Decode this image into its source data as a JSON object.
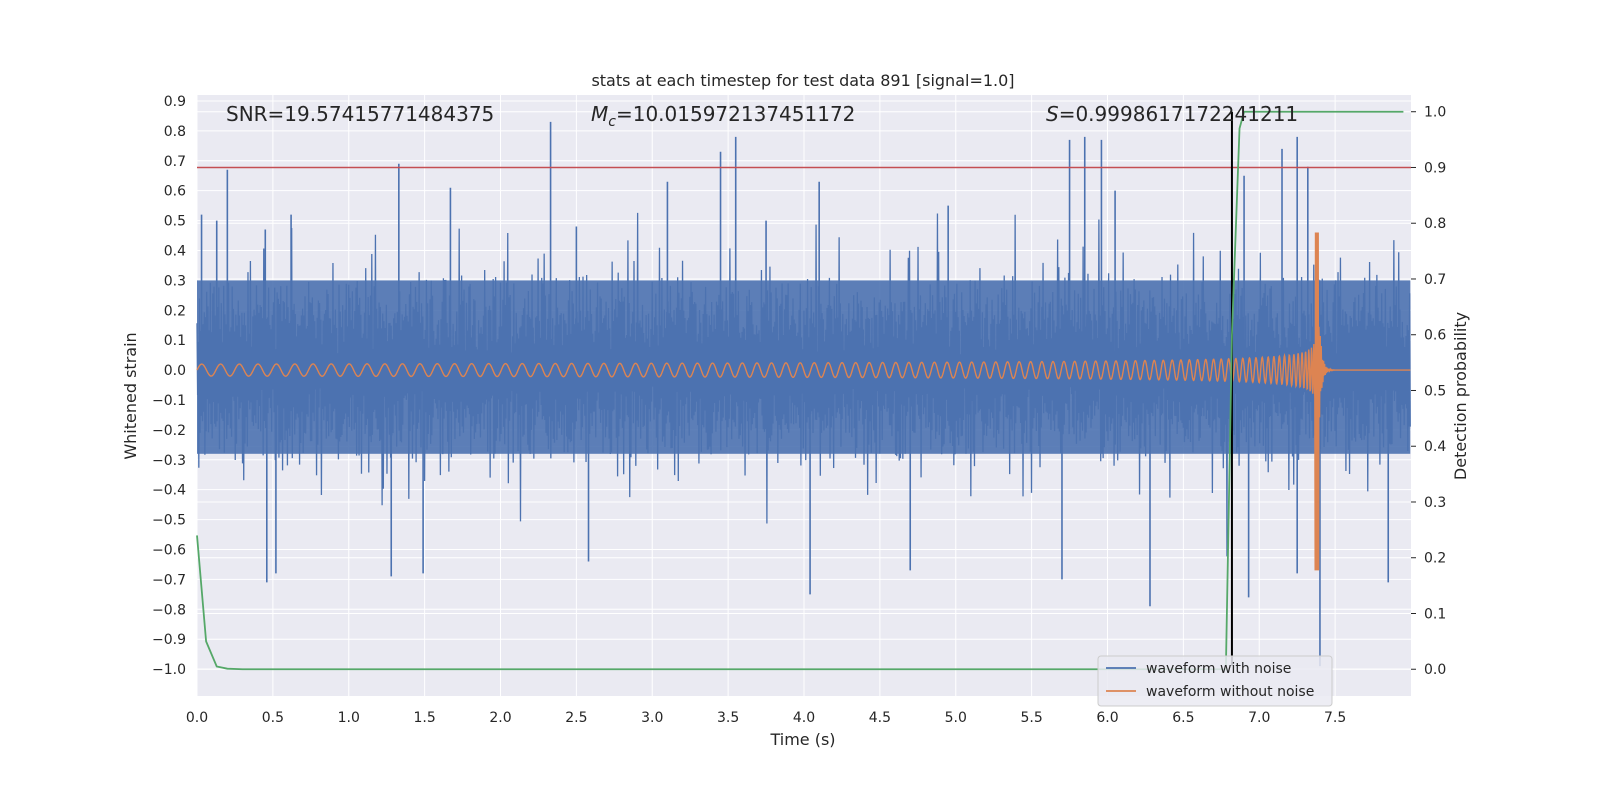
{
  "chart_data": {
    "type": "line",
    "title": "stats at each timestep for test data 891 [signal=1.0]",
    "xlabel": "Time (s)",
    "ylabel": "Whitened strain",
    "y2label": "Detection probability",
    "xlim": [
      0.0,
      8.0
    ],
    "ylim": [
      -1.09,
      0.92
    ],
    "y2lim": [
      -0.048,
      1.03
    ],
    "x_ticks": [
      "0.0",
      "0.5",
      "1.0",
      "1.5",
      "2.0",
      "2.5",
      "3.0",
      "3.5",
      "4.0",
      "4.5",
      "5.0",
      "5.5",
      "6.0",
      "6.5",
      "7.0",
      "7.5"
    ],
    "y_ticks": [
      "0.9",
      "0.8",
      "0.7",
      "0.6",
      "0.5",
      "0.4",
      "0.3",
      "0.2",
      "0.1",
      "0.0",
      "−0.1",
      "−0.2",
      "−0.3",
      "−0.4",
      "−0.5",
      "−0.6",
      "−0.7",
      "−0.8",
      "−0.9",
      "−1.0"
    ],
    "y2_ticks": [
      "1.0",
      "0.9",
      "0.8",
      "0.7",
      "0.6",
      "0.5",
      "0.4",
      "0.3",
      "0.2",
      "0.1",
      "0.0"
    ],
    "annotations": {
      "snr": "SNR=19.57415771484375",
      "mc_symbol": "M",
      "mc_sub": "c",
      "mc_value": "=10.015972137451172",
      "s_symbol": "S",
      "s_value": "=0.9998617172241211"
    },
    "threshold": {
      "value": 0.9,
      "axis": "right",
      "color": "#c44e52"
    },
    "merger_marker": {
      "x": 6.82,
      "color": "#000000"
    },
    "legend": {
      "placement": "lower-right",
      "entries": [
        {
          "label": "waveform with noise",
          "color": "#4c72b0"
        },
        {
          "label": "waveform without noise",
          "color": "#dd8452"
        }
      ]
    },
    "series": [
      {
        "name": "waveform with noise",
        "color": "#4c72b0",
        "axis": "left",
        "band_typical": [
          -0.28,
          0.3
        ],
        "peaks": [
          {
            "x": 0.03,
            "y": 0.52
          },
          {
            "x": 0.13,
            "y": 0.5
          },
          {
            "x": 0.2,
            "y": 0.67
          },
          {
            "x": 0.45,
            "y": 0.47
          },
          {
            "x": 0.62,
            "y": 0.52
          },
          {
            "x": 1.33,
            "y": 0.69
          },
          {
            "x": 1.67,
            "y": 0.61
          },
          {
            "x": 2.33,
            "y": 0.83
          },
          {
            "x": 2.5,
            "y": 0.48
          },
          {
            "x": 3.1,
            "y": 0.63
          },
          {
            "x": 3.45,
            "y": 0.73
          },
          {
            "x": 3.55,
            "y": 0.78
          },
          {
            "x": 3.75,
            "y": 0.5
          },
          {
            "x": 4.1,
            "y": 0.63
          },
          {
            "x": 4.95,
            "y": 0.55
          },
          {
            "x": 5.75,
            "y": 0.77
          },
          {
            "x": 5.85,
            "y": 0.78
          },
          {
            "x": 5.96,
            "y": 0.77
          },
          {
            "x": 6.05,
            "y": 0.6
          },
          {
            "x": 6.9,
            "y": 0.65
          },
          {
            "x": 7.15,
            "y": 0.74
          },
          {
            "x": 7.25,
            "y": 0.78
          },
          {
            "x": 7.32,
            "y": 0.68
          }
        ],
        "troughs": [
          {
            "x": 0.46,
            "y": -0.71
          },
          {
            "x": 0.52,
            "y": -0.68
          },
          {
            "x": 1.28,
            "y": -0.69
          },
          {
            "x": 1.49,
            "y": -0.68
          },
          {
            "x": 2.58,
            "y": -0.64
          },
          {
            "x": 4.04,
            "y": -0.75
          },
          {
            "x": 4.7,
            "y": -0.67
          },
          {
            "x": 5.7,
            "y": -0.7
          },
          {
            "x": 6.28,
            "y": -0.79
          },
          {
            "x": 6.93,
            "y": -0.76
          },
          {
            "x": 7.25,
            "y": -0.68
          },
          {
            "x": 7.4,
            "y": -0.99
          },
          {
            "x": 7.85,
            "y": -0.71
          }
        ]
      },
      {
        "name": "waveform without noise",
        "color": "#dd8452",
        "axis": "left",
        "description_values": {
          "initial_amplitude": 0.02,
          "peak_x": 7.38,
          "peak_max": 0.46,
          "peak_min": -0.67,
          "post_merger": 0.0
        }
      },
      {
        "name": "detection probability",
        "color": "#55a868",
        "axis": "right",
        "x": [
          0.0,
          0.06,
          0.13,
          0.2,
          0.3,
          1.0,
          6.78,
          6.82,
          6.87,
          6.9,
          7.95
        ],
        "values": [
          0.24,
          0.05,
          0.005,
          0.001,
          0.0,
          0.0,
          0.0,
          0.6,
          0.97,
          1.0,
          1.0
        ]
      }
    ]
  }
}
